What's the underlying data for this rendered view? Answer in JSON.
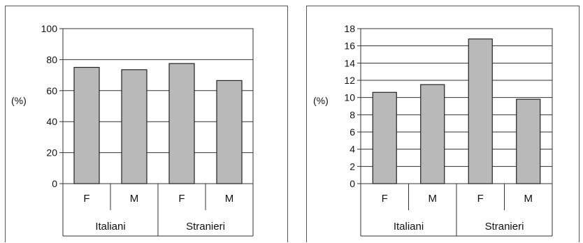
{
  "chart_data": [
    {
      "type": "bar",
      "categories": [
        "F",
        "M",
        "F",
        "M"
      ],
      "groups": [
        {
          "label": "Italiani",
          "span": 2
        },
        {
          "label": "Stranieri",
          "span": 2
        }
      ],
      "values": [
        75,
        73.5,
        77.5,
        66.5
      ],
      "ylabel": "(%)",
      "ylim": [
        0,
        100
      ],
      "yticks": [
        0,
        20,
        40,
        60,
        80,
        100
      ],
      "grid": true,
      "bar_color": "#b9b9b9"
    },
    {
      "type": "bar",
      "categories": [
        "F",
        "M",
        "F",
        "M"
      ],
      "groups": [
        {
          "label": "Italiani",
          "span": 2
        },
        {
          "label": "Stranieri",
          "span": 2
        }
      ],
      "values": [
        10.6,
        11.5,
        16.8,
        9.8
      ],
      "ylabel": "(%)",
      "ylim": [
        0,
        18
      ],
      "yticks": [
        0,
        2,
        4,
        6,
        8,
        10,
        12,
        14,
        16,
        18
      ],
      "grid": true,
      "bar_color": "#b9b9b9"
    }
  ]
}
